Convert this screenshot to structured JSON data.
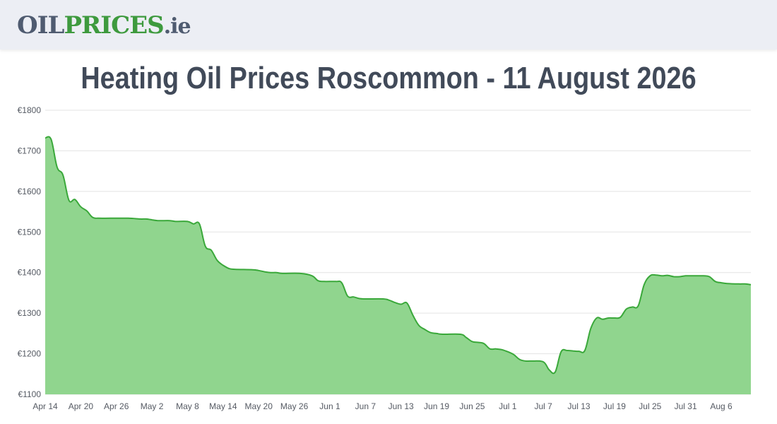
{
  "header": {
    "logo_part1": "OIL",
    "logo_part2": "PRICES",
    "logo_part3": ".ie"
  },
  "colors": {
    "line": "#3aa83a",
    "fill": "#90d58e",
    "grid": "#e3e3e3",
    "header_bg": "#eceef4"
  },
  "chart_data": {
    "type": "area",
    "title": "Heating Oil Prices Roscommon - 11 August 2026",
    "ylim": [
      1100,
      1800
    ],
    "yticks": [
      1100,
      1200,
      1300,
      1400,
      1500,
      1600,
      1700,
      1800
    ],
    "ytick_labels": [
      "€1100",
      "€1200",
      "€1300",
      "€1400",
      "€1500",
      "€1600",
      "€1700",
      "€1800"
    ],
    "grid": "horizontal",
    "xtick_labels": [
      "Apr 14",
      "Apr 20",
      "Apr 26",
      "May 2",
      "May 8",
      "May 14",
      "May 20",
      "May 26",
      "Jun 1",
      "Jun 7",
      "Jun 13",
      "Jun 19",
      "Jun 25",
      "Jul 1",
      "Jul 7",
      "Jul 13",
      "Jul 19",
      "Jul 25",
      "Jul 31",
      "Aug 6"
    ],
    "x_range": [
      "2026-04-14",
      "2026-08-11"
    ],
    "series": [
      {
        "values": [
          [
            "2026-04-14",
            1732
          ],
          [
            "2026-04-15",
            1728
          ],
          [
            "2026-04-16",
            1660
          ],
          [
            "2026-04-17",
            1640
          ],
          [
            "2026-04-18",
            1578
          ],
          [
            "2026-04-19",
            1580
          ],
          [
            "2026-04-20",
            1562
          ],
          [
            "2026-04-21",
            1552
          ],
          [
            "2026-04-22",
            1536
          ],
          [
            "2026-04-23",
            1534
          ],
          [
            "2026-04-25",
            1534
          ],
          [
            "2026-04-28",
            1534
          ],
          [
            "2026-04-30",
            1532
          ],
          [
            "2026-05-01",
            1532
          ],
          [
            "2026-05-02",
            1530
          ],
          [
            "2026-05-03",
            1528
          ],
          [
            "2026-05-05",
            1528
          ],
          [
            "2026-05-06",
            1526
          ],
          [
            "2026-05-08",
            1526
          ],
          [
            "2026-05-09",
            1520
          ],
          [
            "2026-05-10",
            1520
          ],
          [
            "2026-05-11",
            1465
          ],
          [
            "2026-05-12",
            1455
          ],
          [
            "2026-05-13",
            1430
          ],
          [
            "2026-05-14",
            1418
          ],
          [
            "2026-05-15",
            1410
          ],
          [
            "2026-05-16",
            1408
          ],
          [
            "2026-05-19",
            1407
          ],
          [
            "2026-05-20",
            1405
          ],
          [
            "2026-05-21",
            1402
          ],
          [
            "2026-05-22",
            1400
          ],
          [
            "2026-05-23",
            1400
          ],
          [
            "2026-05-24",
            1398
          ],
          [
            "2026-05-27",
            1398
          ],
          [
            "2026-05-29",
            1392
          ],
          [
            "2026-05-30",
            1380
          ],
          [
            "2026-05-31",
            1378
          ],
          [
            "2026-06-02",
            1378
          ],
          [
            "2026-06-03",
            1375
          ],
          [
            "2026-06-04",
            1342
          ],
          [
            "2026-06-05",
            1340
          ],
          [
            "2026-06-06",
            1336
          ],
          [
            "2026-06-07",
            1335
          ],
          [
            "2026-06-10",
            1335
          ],
          [
            "2026-06-11",
            1332
          ],
          [
            "2026-06-12",
            1326
          ],
          [
            "2026-06-13",
            1322
          ],
          [
            "2026-06-14",
            1325
          ],
          [
            "2026-06-15",
            1295
          ],
          [
            "2026-06-16",
            1270
          ],
          [
            "2026-06-17",
            1260
          ],
          [
            "2026-06-18",
            1252
          ],
          [
            "2026-06-19",
            1250
          ],
          [
            "2026-06-20",
            1248
          ],
          [
            "2026-06-23",
            1248
          ],
          [
            "2026-06-24",
            1240
          ],
          [
            "2026-06-25",
            1230
          ],
          [
            "2026-06-26",
            1228
          ],
          [
            "2026-06-27",
            1225
          ],
          [
            "2026-06-28",
            1212
          ],
          [
            "2026-06-29",
            1212
          ],
          [
            "2026-06-30",
            1210
          ],
          [
            "2026-07-01",
            1205
          ],
          [
            "2026-07-02",
            1198
          ],
          [
            "2026-07-03",
            1186
          ],
          [
            "2026-07-04",
            1182
          ],
          [
            "2026-07-05",
            1182
          ],
          [
            "2026-07-07",
            1180
          ],
          [
            "2026-07-08",
            1160
          ],
          [
            "2026-07-09",
            1155
          ],
          [
            "2026-07-10",
            1205
          ],
          [
            "2026-07-11",
            1208
          ],
          [
            "2026-07-12",
            1207
          ],
          [
            "2026-07-13",
            1206
          ],
          [
            "2026-07-14",
            1208
          ],
          [
            "2026-07-15",
            1262
          ],
          [
            "2026-07-16",
            1288
          ],
          [
            "2026-07-17",
            1285
          ],
          [
            "2026-07-18",
            1288
          ],
          [
            "2026-07-19",
            1288
          ],
          [
            "2026-07-20",
            1290
          ],
          [
            "2026-07-21",
            1310
          ],
          [
            "2026-07-22",
            1315
          ],
          [
            "2026-07-23",
            1318
          ],
          [
            "2026-07-24",
            1370
          ],
          [
            "2026-07-25",
            1392
          ],
          [
            "2026-07-26",
            1394
          ],
          [
            "2026-07-27",
            1392
          ],
          [
            "2026-07-28",
            1393
          ],
          [
            "2026-07-29",
            1390
          ],
          [
            "2026-07-30",
            1390
          ],
          [
            "2026-07-31",
            1392
          ],
          [
            "2026-08-01",
            1392
          ],
          [
            "2026-08-03",
            1392
          ],
          [
            "2026-08-04",
            1390
          ],
          [
            "2026-08-05",
            1378
          ],
          [
            "2026-08-06",
            1375
          ],
          [
            "2026-08-07",
            1373
          ],
          [
            "2026-08-09",
            1372
          ],
          [
            "2026-08-10",
            1372
          ],
          [
            "2026-08-11",
            1370
          ]
        ]
      }
    ]
  }
}
